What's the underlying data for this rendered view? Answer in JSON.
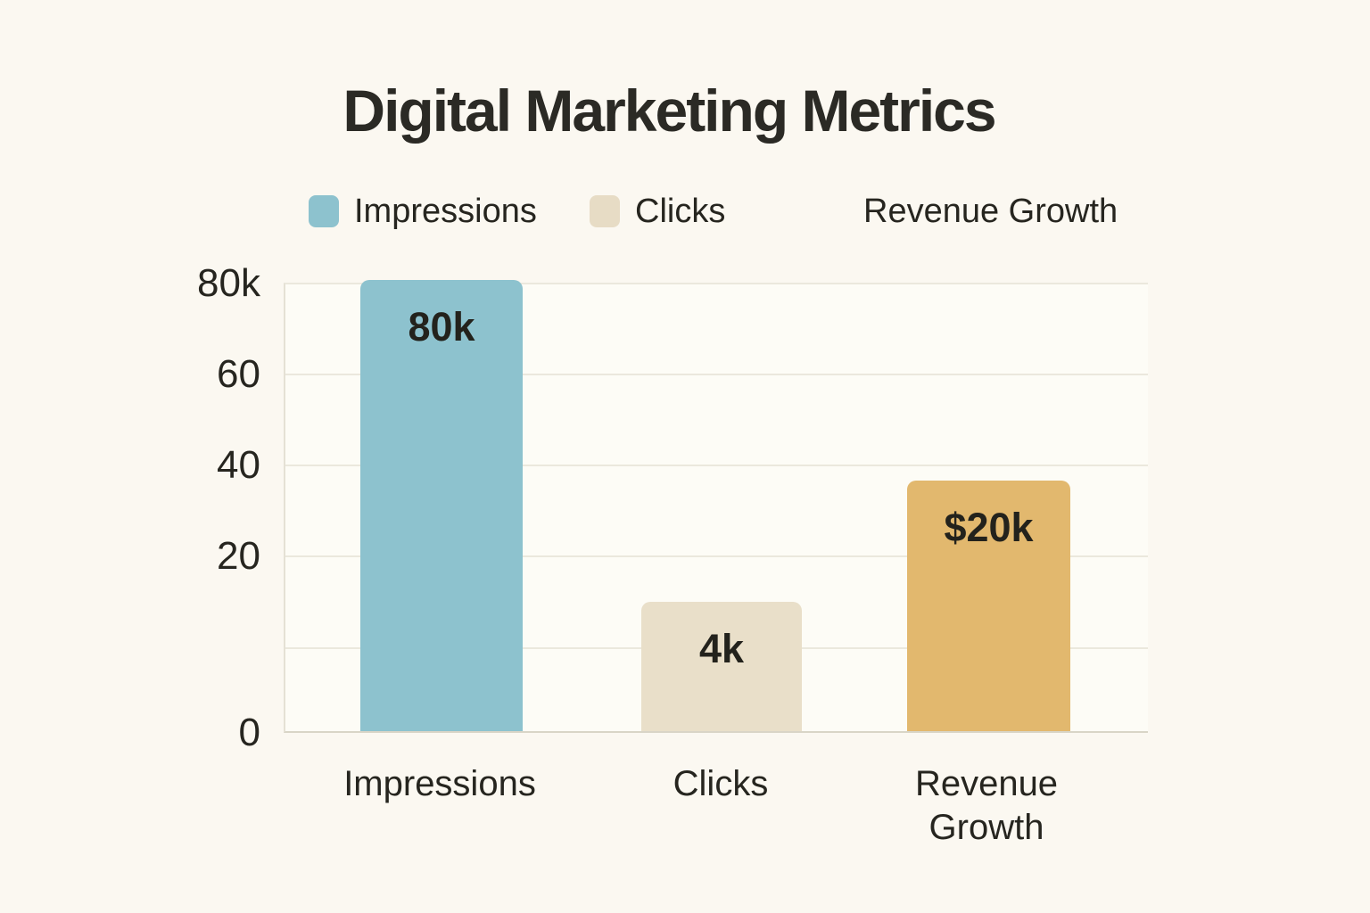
{
  "header": {
    "title": "Digital Marketing Metrics"
  },
  "colors": {
    "background": "#fbf8f1",
    "plot_background": "#fdfcf6",
    "gridline": "#ebe8dd",
    "axis": "#d9d5c7",
    "text": "#26251f",
    "impressions_bar": "#8dc2ce",
    "clicks_bar": "#e9dfc9",
    "revenue_bar": "#e2b86e"
  },
  "chart_data": {
    "type": "bar",
    "title": "Digital Marketing Metrics",
    "categories": [
      "Impressions",
      "Clicks",
      "Revenue Growth"
    ],
    "values": [
      80000,
      4000,
      20000
    ],
    "value_labels": [
      "80k",
      "4k",
      "$20k"
    ],
    "series": [
      {
        "name": "Impressions",
        "value": 80000,
        "value_label": "80k",
        "color": "#8dc2ce"
      },
      {
        "name": "Clicks",
        "value": 4000,
        "value_label": "4k",
        "color": "#e9dfc9"
      },
      {
        "name": "Revenue Growth",
        "value": 20000,
        "value_label": "$20k",
        "color": "#e2b86e"
      }
    ],
    "legend": [
      {
        "label": "Impressions",
        "color": "#8dc2ce",
        "swatch": true
      },
      {
        "label": "Clicks",
        "color": "#e7dcc5",
        "swatch": true
      },
      {
        "label": "Revenue Growth",
        "color": null,
        "swatch": false
      }
    ],
    "y_axis": {
      "ticks": [
        "80k",
        "60",
        "40",
        "20",
        "0"
      ],
      "unlabeled_gridline_between_20_and_0": true
    },
    "xlabel": "",
    "ylabel": "",
    "ylim": [
      0,
      80000
    ],
    "grid": true,
    "legend_position": "top"
  }
}
